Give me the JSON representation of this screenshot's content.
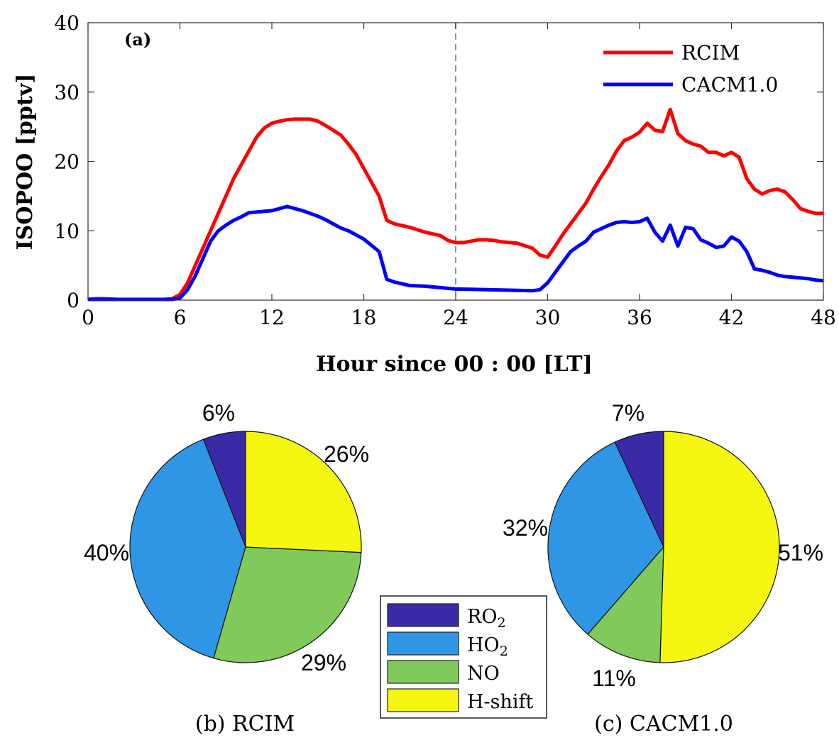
{
  "chart_data": [
    {
      "type": "line",
      "panel_label": "(a)",
      "xlabel": "Hour since 00 : 00 [LT]",
      "ylabel": "ISOPOO [pptv]",
      "xlim": [
        0,
        48
      ],
      "ylim": [
        0,
        40
      ],
      "xticks": [
        0,
        6,
        12,
        18,
        24,
        30,
        36,
        42,
        48
      ],
      "yticks": [
        0,
        10,
        20,
        30,
        40
      ],
      "grid": false,
      "legend_position": "top-right",
      "vertical_marker_x": 24,
      "series": [
        {
          "name": "RCIM",
          "color": "#ff0000",
          "points": [
            [
              0,
              0.1
            ],
            [
              0.5,
              0.2
            ],
            [
              1,
              0.2
            ],
            [
              2,
              0.1
            ],
            [
              3,
              0.1
            ],
            [
              4,
              0.1
            ],
            [
              5,
              0.1
            ],
            [
              5.5,
              0.2
            ],
            [
              6,
              0.8
            ],
            [
              6.5,
              2.5
            ],
            [
              7,
              5
            ],
            [
              7.5,
              7.5
            ],
            [
              8,
              10
            ],
            [
              8.5,
              12.5
            ],
            [
              9,
              15
            ],
            [
              9.5,
              17.5
            ],
            [
              10,
              19.5
            ],
            [
              10.5,
              21.5
            ],
            [
              11,
              23.5
            ],
            [
              11.5,
              24.8
            ],
            [
              12,
              25.5
            ],
            [
              12.5,
              25.8
            ],
            [
              13,
              26
            ],
            [
              13.5,
              26.1
            ],
            [
              14,
              26.1
            ],
            [
              14.5,
              26.1
            ],
            [
              15,
              25.8
            ],
            [
              15.5,
              25.2
            ],
            [
              16,
              24.5
            ],
            [
              16.5,
              23.8
            ],
            [
              17,
              22.5
            ],
            [
              17.5,
              21
            ],
            [
              18,
              19
            ],
            [
              18.5,
              17
            ],
            [
              19,
              15
            ],
            [
              19.5,
              11.5
            ],
            [
              20,
              11
            ],
            [
              21,
              10.5
            ],
            [
              22,
              9.8
            ],
            [
              23,
              9.3
            ],
            [
              23.5,
              8.6
            ],
            [
              24,
              8.3
            ],
            [
              24.5,
              8.3
            ],
            [
              25,
              8.5
            ],
            [
              25.5,
              8.7
            ],
            [
              26,
              8.7
            ],
            [
              26.5,
              8.6
            ],
            [
              27,
              8.4
            ],
            [
              28,
              8.2
            ],
            [
              29,
              7.5
            ],
            [
              29.5,
              6.5
            ],
            [
              30,
              6.2
            ],
            [
              30.5,
              7.8
            ],
            [
              31,
              9.5
            ],
            [
              31.5,
              11
            ],
            [
              32,
              12.5
            ],
            [
              32.5,
              14
            ],
            [
              33,
              16
            ],
            [
              33.5,
              17.8
            ],
            [
              34,
              19.5
            ],
            [
              34.5,
              21.5
            ],
            [
              35,
              23
            ],
            [
              35.5,
              23.5
            ],
            [
              36,
              24.2
            ],
            [
              36.5,
              25.5
            ],
            [
              37,
              24.5
            ],
            [
              37.5,
              24.3
            ],
            [
              38,
              27.5
            ],
            [
              38.5,
              24
            ],
            [
              39,
              23
            ],
            [
              39.5,
              22.5
            ],
            [
              40,
              22.2
            ],
            [
              40.5,
              21.3
            ],
            [
              41,
              21.3
            ],
            [
              41.5,
              20.8
            ],
            [
              42,
              21.3
            ],
            [
              42.5,
              20.6
            ],
            [
              43,
              17.5
            ],
            [
              43.5,
              16
            ],
            [
              44,
              15.3
            ],
            [
              44.5,
              15.8
            ],
            [
              45,
              16
            ],
            [
              45.5,
              15.6
            ],
            [
              46,
              14.5
            ],
            [
              46.5,
              13.2
            ],
            [
              47,
              12.8
            ],
            [
              47.5,
              12.5
            ],
            [
              48,
              12.5
            ]
          ]
        },
        {
          "name": "CACM1.0",
          "color": "#0000ff",
          "points": [
            [
              0,
              0.1
            ],
            [
              0.5,
              0.1
            ],
            [
              1,
              0.1
            ],
            [
              2,
              0.1
            ],
            [
              3,
              0.1
            ],
            [
              4,
              0.1
            ],
            [
              5,
              0.1
            ],
            [
              5.5,
              0.1
            ],
            [
              6,
              0.3
            ],
            [
              6.5,
              1.5
            ],
            [
              7,
              3.5
            ],
            [
              7.5,
              6
            ],
            [
              8,
              8.5
            ],
            [
              8.5,
              10
            ],
            [
              9,
              10.8
            ],
            [
              9.5,
              11.5
            ],
            [
              10,
              12
            ],
            [
              10.5,
              12.6
            ],
            [
              11,
              12.7
            ],
            [
              11.5,
              12.8
            ],
            [
              12,
              12.9
            ],
            [
              12.5,
              13.2
            ],
            [
              13,
              13.5
            ],
            [
              13.5,
              13.2
            ],
            [
              14,
              12.9
            ],
            [
              14.5,
              12.5
            ],
            [
              15,
              12.1
            ],
            [
              15.5,
              11.6
            ],
            [
              16,
              11
            ],
            [
              16.5,
              10.4
            ],
            [
              17,
              10
            ],
            [
              17.5,
              9.4
            ],
            [
              18,
              8.8
            ],
            [
              18.5,
              7.9
            ],
            [
              19,
              7
            ],
            [
              19.5,
              3
            ],
            [
              20,
              2.6
            ],
            [
              21,
              2.1
            ],
            [
              22,
              2
            ],
            [
              23,
              1.8
            ],
            [
              24,
              1.6
            ],
            [
              25,
              1.55
            ],
            [
              26,
              1.5
            ],
            [
              27,
              1.45
            ],
            [
              28,
              1.4
            ],
            [
              29,
              1.35
            ],
            [
              29.5,
              1.5
            ],
            [
              30,
              2.5
            ],
            [
              30.5,
              4
            ],
            [
              31,
              5.5
            ],
            [
              31.5,
              7
            ],
            [
              32,
              7.8
            ],
            [
              32.5,
              8.5
            ],
            [
              33,
              9.8
            ],
            [
              33.5,
              10.3
            ],
            [
              34,
              10.8
            ],
            [
              34.5,
              11.2
            ],
            [
              35,
              11.3
            ],
            [
              35.5,
              11.2
            ],
            [
              36,
              11.3
            ],
            [
              36.5,
              11.8
            ],
            [
              37,
              9.8
            ],
            [
              37.5,
              8.5
            ],
            [
              38,
              10.8
            ],
            [
              38.5,
              7.8
            ],
            [
              39,
              10.5
            ],
            [
              39.5,
              10.3
            ],
            [
              40,
              8.7
            ],
            [
              40.5,
              8.2
            ],
            [
              41,
              7.6
            ],
            [
              41.5,
              7.8
            ],
            [
              42,
              9.1
            ],
            [
              42.5,
              8.5
            ],
            [
              43,
              7
            ],
            [
              43.5,
              4.5
            ],
            [
              44,
              4.3
            ],
            [
              44.5,
              4
            ],
            [
              45,
              3.6
            ],
            [
              45.5,
              3.4
            ],
            [
              46,
              3.3
            ],
            [
              46.5,
              3.2
            ],
            [
              47,
              3.1
            ],
            [
              47.5,
              2.9
            ],
            [
              48,
              2.8
            ]
          ]
        }
      ]
    },
    {
      "type": "pie",
      "caption": "(b) RCIM",
      "slices": [
        {
          "name": "RO2",
          "value": 6,
          "label": "6%",
          "color": "#3b2aa8"
        },
        {
          "name": "HO2",
          "value": 40,
          "label": "40%",
          "color": "#2f96e6"
        },
        {
          "name": "NO",
          "value": 29,
          "label": "29%",
          "color": "#80c95a"
        },
        {
          "name": "H-shift",
          "value": 26,
          "label": "26%",
          "color": "#f5f711"
        }
      ]
    },
    {
      "type": "pie",
      "caption": "(c) CACM1.0",
      "slices": [
        {
          "name": "RO2",
          "value": 7,
          "label": "7%",
          "color": "#3b2aa8"
        },
        {
          "name": "HO2",
          "value": 32,
          "label": "32%",
          "color": "#2f96e6"
        },
        {
          "name": "NO",
          "value": 11,
          "label": "11%",
          "color": "#80c95a"
        },
        {
          "name": "H-shift",
          "value": 51,
          "label": "51%",
          "color": "#f5f711"
        }
      ]
    }
  ],
  "legend_shared": [
    {
      "base": "RO",
      "sub": "2",
      "color": "#3b2aa8"
    },
    {
      "base": "HO",
      "sub": "2",
      "color": "#2f96e6"
    },
    {
      "base": "NO",
      "sub": "",
      "color": "#80c95a"
    },
    {
      "base": "H-shift",
      "sub": "",
      "color": "#f5f711"
    }
  ]
}
